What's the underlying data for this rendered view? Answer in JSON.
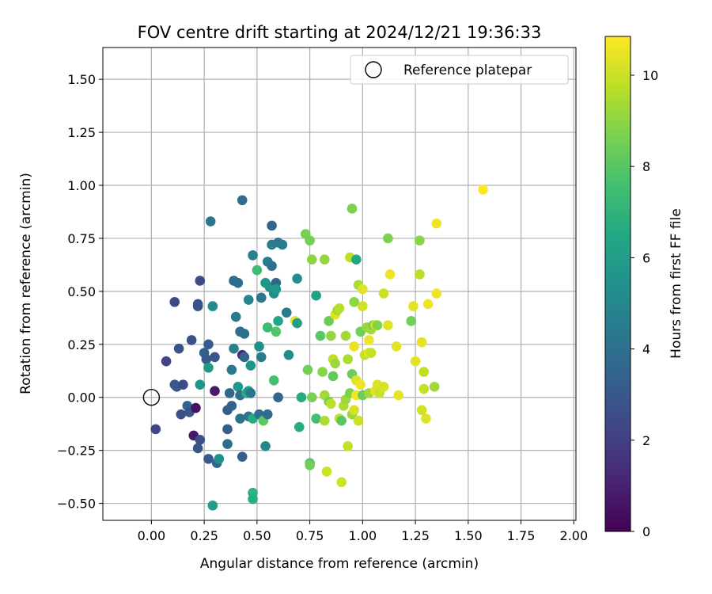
{
  "chart_data": {
    "type": "scatter",
    "title": "FOV centre drift starting at 2024/12/21 19:36:33",
    "xlabel": "Angular distance from reference (arcmin)",
    "ylabel": "Rotation from reference (arcmin)",
    "xlim": [
      -0.23,
      2.01
    ],
    "ylim": [
      -0.58,
      1.65
    ],
    "xticks": [
      "0.00",
      "0.25",
      "0.50",
      "0.75",
      "1.00",
      "1.25",
      "1.50",
      "1.75",
      "2.00"
    ],
    "yticks": [
      "-0.50",
      "-0.25",
      "0.00",
      "0.25",
      "0.50",
      "0.75",
      "1.00",
      "1.25",
      "1.50"
    ],
    "grid": true,
    "legend": {
      "position": "top-right",
      "label": "Reference platepar"
    },
    "reference_point": {
      "x": 0.0,
      "y": 0.0
    },
    "colorbar": {
      "label": "Hours from first FF file",
      "min": 0,
      "max": 10.85,
      "ticks": [
        "0",
        "2",
        "4",
        "6",
        "8",
        "10"
      ],
      "colormap": "viridis"
    },
    "points": [
      {
        "x": 0.02,
        "y": -0.15,
        "h": 2.3
      },
      {
        "x": 0.07,
        "y": 0.17,
        "h": 2.2
      },
      {
        "x": 0.11,
        "y": 0.45,
        "h": 2.4
      },
      {
        "x": 0.11,
        "y": 0.06,
        "h": 2.9
      },
      {
        "x": 0.12,
        "y": 0.05,
        "h": 3.0
      },
      {
        "x": 0.13,
        "y": 0.23,
        "h": 2.8
      },
      {
        "x": 0.14,
        "y": -0.08,
        "h": 2.6
      },
      {
        "x": 0.15,
        "y": 0.06,
        "h": 2.5
      },
      {
        "x": 0.17,
        "y": -0.04,
        "h": 3.4
      },
      {
        "x": 0.18,
        "y": -0.07,
        "h": 2.9
      },
      {
        "x": 0.19,
        "y": 0.27,
        "h": 2.7
      },
      {
        "x": 0.2,
        "y": -0.18,
        "h": 0.7
      },
      {
        "x": 0.21,
        "y": -0.05,
        "h": 0.5
      },
      {
        "x": 0.22,
        "y": 0.44,
        "h": 2.7
      },
      {
        "x": 0.22,
        "y": 0.43,
        "h": 2.8
      },
      {
        "x": 0.22,
        "y": -0.24,
        "h": 2.9
      },
      {
        "x": 0.23,
        "y": 0.55,
        "h": 2.5
      },
      {
        "x": 0.23,
        "y": -0.2,
        "h": 2.6
      },
      {
        "x": 0.23,
        "y": 0.06,
        "h": 5.6
      },
      {
        "x": 0.25,
        "y": 0.21,
        "h": 3.3
      },
      {
        "x": 0.26,
        "y": 0.18,
        "h": 3.0
      },
      {
        "x": 0.27,
        "y": 0.14,
        "h": 5.8
      },
      {
        "x": 0.27,
        "y": 0.25,
        "h": 3.1
      },
      {
        "x": 0.27,
        "y": -0.29,
        "h": 3.0
      },
      {
        "x": 0.28,
        "y": 0.83,
        "h": 4.2
      },
      {
        "x": 0.29,
        "y": 0.43,
        "h": 5.3
      },
      {
        "x": 0.29,
        "y": -0.51,
        "h": 6.0
      },
      {
        "x": 0.3,
        "y": 0.03,
        "h": 0.8
      },
      {
        "x": 0.3,
        "y": 0.19,
        "h": 2.9
      },
      {
        "x": 0.31,
        "y": -0.31,
        "h": 3.6
      },
      {
        "x": 0.32,
        "y": -0.29,
        "h": 5.4
      },
      {
        "x": 0.36,
        "y": -0.06,
        "h": 3.1
      },
      {
        "x": 0.36,
        "y": -0.22,
        "h": 3.8
      },
      {
        "x": 0.36,
        "y": -0.15,
        "h": 3.2
      },
      {
        "x": 0.37,
        "y": 0.02,
        "h": 3.6
      },
      {
        "x": 0.38,
        "y": -0.04,
        "h": 3.4
      },
      {
        "x": 0.38,
        "y": 0.13,
        "h": 4.3
      },
      {
        "x": 0.39,
        "y": 0.55,
        "h": 3.8
      },
      {
        "x": 0.39,
        "y": 0.23,
        "h": 4.8
      },
      {
        "x": 0.4,
        "y": 0.38,
        "h": 4.5
      },
      {
        "x": 0.41,
        "y": 0.54,
        "h": 3.9
      },
      {
        "x": 0.41,
        "y": 0.05,
        "h": 5.7
      },
      {
        "x": 0.42,
        "y": 0.01,
        "h": 3.9
      },
      {
        "x": 0.42,
        "y": -0.1,
        "h": 4.1
      },
      {
        "x": 0.42,
        "y": 0.31,
        "h": 3.9
      },
      {
        "x": 0.43,
        "y": 0.93,
        "h": 3.9
      },
      {
        "x": 0.43,
        "y": -0.28,
        "h": 3.2
      },
      {
        "x": 0.43,
        "y": 0.2,
        "h": 1.3
      },
      {
        "x": 0.44,
        "y": 0.19,
        "h": 3.5
      },
      {
        "x": 0.44,
        "y": 0.3,
        "h": 4.0
      },
      {
        "x": 0.45,
        "y": 0.02,
        "h": 6.7
      },
      {
        "x": 0.46,
        "y": 0.03,
        "h": 5.9
      },
      {
        "x": 0.46,
        "y": 0.46,
        "h": 4.9
      },
      {
        "x": 0.46,
        "y": -0.09,
        "h": 4.2
      },
      {
        "x": 0.47,
        "y": 0.15,
        "h": 5.6
      },
      {
        "x": 0.47,
        "y": 0.02,
        "h": 4.2
      },
      {
        "x": 0.48,
        "y": 0.67,
        "h": 4.7
      },
      {
        "x": 0.48,
        "y": -0.45,
        "h": 7.0
      },
      {
        "x": 0.48,
        "y": -0.1,
        "h": 6.6
      },
      {
        "x": 0.48,
        "y": -0.48,
        "h": 6.8
      },
      {
        "x": 0.5,
        "y": 0.6,
        "h": 7.4
      },
      {
        "x": 0.51,
        "y": 0.24,
        "h": 5.3
      },
      {
        "x": 0.51,
        "y": -0.08,
        "h": 3.9
      },
      {
        "x": 0.52,
        "y": 0.19,
        "h": 4.5
      },
      {
        "x": 0.52,
        "y": 0.47,
        "h": 3.5
      },
      {
        "x": 0.52,
        "y": 0.47,
        "h": 4.2
      },
      {
        "x": 0.53,
        "y": -0.11,
        "h": 8.1
      },
      {
        "x": 0.54,
        "y": 0.54,
        "h": 5.7
      },
      {
        "x": 0.54,
        "y": -0.23,
        "h": 5.0
      },
      {
        "x": 0.55,
        "y": 0.64,
        "h": 4.5
      },
      {
        "x": 0.55,
        "y": -0.08,
        "h": 3.8
      },
      {
        "x": 0.55,
        "y": 0.33,
        "h": 7.3
      },
      {
        "x": 0.56,
        "y": 0.52,
        "h": 5.5
      },
      {
        "x": 0.57,
        "y": 0.81,
        "h": 3.5
      },
      {
        "x": 0.57,
        "y": 0.72,
        "h": 4.5
      },
      {
        "x": 0.57,
        "y": 0.62,
        "h": 4.0
      },
      {
        "x": 0.58,
        "y": 0.49,
        "h": 5.3
      },
      {
        "x": 0.58,
        "y": 0.08,
        "h": 7.6
      },
      {
        "x": 0.59,
        "y": 0.54,
        "h": 3.6
      },
      {
        "x": 0.59,
        "y": 0.51,
        "h": 5.8
      },
      {
        "x": 0.59,
        "y": 0.31,
        "h": 7.9
      },
      {
        "x": 0.6,
        "y": 0.73,
        "h": 4.4
      },
      {
        "x": 0.6,
        "y": -0.0,
        "h": 3.5
      },
      {
        "x": 0.6,
        "y": 0.36,
        "h": 6.3
      },
      {
        "x": 0.62,
        "y": 0.72,
        "h": 4.6
      },
      {
        "x": 0.64,
        "y": 0.4,
        "h": 4.5
      },
      {
        "x": 0.65,
        "y": 0.2,
        "h": 5.2
      },
      {
        "x": 0.68,
        "y": 0.36,
        "h": 10.5
      },
      {
        "x": 0.69,
        "y": 0.56,
        "h": 5.3
      },
      {
        "x": 0.69,
        "y": 0.35,
        "h": 6.0
      },
      {
        "x": 0.7,
        "y": -0.14,
        "h": 6.7
      },
      {
        "x": 0.71,
        "y": -0.0,
        "h": 6.6
      },
      {
        "x": 0.73,
        "y": 0.77,
        "h": 8.6
      },
      {
        "x": 0.74,
        "y": 0.13,
        "h": 8.5
      },
      {
        "x": 0.75,
        "y": 0.74,
        "h": 8.5
      },
      {
        "x": 0.75,
        "y": -0.31,
        "h": 7.9
      },
      {
        "x": 0.75,
        "y": -0.32,
        "h": 8.5
      },
      {
        "x": 0.76,
        "y": 0.0,
        "h": 8.6
      },
      {
        "x": 0.76,
        "y": 0.65,
        "h": 9.0
      },
      {
        "x": 0.78,
        "y": 0.48,
        "h": 6.2
      },
      {
        "x": 0.78,
        "y": -0.1,
        "h": 7.6
      },
      {
        "x": 0.8,
        "y": 0.29,
        "h": 8.0
      },
      {
        "x": 0.81,
        "y": 0.12,
        "h": 8.9
      },
      {
        "x": 0.82,
        "y": 0.65,
        "h": 9.1
      },
      {
        "x": 0.82,
        "y": -0.11,
        "h": 9.5
      },
      {
        "x": 0.82,
        "y": 0.01,
        "h": 9.3
      },
      {
        "x": 0.83,
        "y": -0.35,
        "h": 10.0
      },
      {
        "x": 0.84,
        "y": 0.36,
        "h": 8.4
      },
      {
        "x": 0.84,
        "y": -0.02,
        "h": 8.6
      },
      {
        "x": 0.85,
        "y": 0.29,
        "h": 9.1
      },
      {
        "x": 0.85,
        "y": -0.03,
        "h": 9.8
      },
      {
        "x": 0.86,
        "y": 0.1,
        "h": 8.2
      },
      {
        "x": 0.86,
        "y": 0.18,
        "h": 9.8
      },
      {
        "x": 0.87,
        "y": 0.16,
        "h": 9.2
      },
      {
        "x": 0.87,
        "y": 0.39,
        "h": 10.3
      },
      {
        "x": 0.88,
        "y": 0.41,
        "h": 9.4
      },
      {
        "x": 0.89,
        "y": -0.1,
        "h": 9.9
      },
      {
        "x": 0.89,
        "y": 0.42,
        "h": 9.7
      },
      {
        "x": 0.9,
        "y": -0.11,
        "h": 8.0
      },
      {
        "x": 0.9,
        "y": -0.4,
        "h": 10.1
      },
      {
        "x": 0.91,
        "y": -0.04,
        "h": 9.5
      },
      {
        "x": 0.92,
        "y": 0.29,
        "h": 9.3
      },
      {
        "x": 0.92,
        "y": -0.01,
        "h": 9.2
      },
      {
        "x": 0.93,
        "y": -0.23,
        "h": 9.9
      },
      {
        "x": 0.93,
        "y": 0.18,
        "h": 9.5
      },
      {
        "x": 0.94,
        "y": 0.66,
        "h": 9.8
      },
      {
        "x": 0.94,
        "y": 0.02,
        "h": 8.7
      },
      {
        "x": 0.95,
        "y": -0.08,
        "h": 9.2
      },
      {
        "x": 0.95,
        "y": 0.11,
        "h": 8.4
      },
      {
        "x": 0.95,
        "y": 0.89,
        "h": 8.7
      },
      {
        "x": 0.96,
        "y": 0.45,
        "h": 9.0
      },
      {
        "x": 0.96,
        "y": 0.24,
        "h": 10.5
      },
      {
        "x": 0.96,
        "y": -0.06,
        "h": 10.2
      },
      {
        "x": 0.97,
        "y": 0.65,
        "h": 6.5
      },
      {
        "x": 0.97,
        "y": 0.01,
        "h": 10.7
      },
      {
        "x": 0.97,
        "y": 0.08,
        "h": 10.3
      },
      {
        "x": 0.98,
        "y": -0.11,
        "h": 10.0
      },
      {
        "x": 0.98,
        "y": 0.53,
        "h": 9.5
      },
      {
        "x": 0.99,
        "y": 0.31,
        "h": 8.5
      },
      {
        "x": 0.99,
        "y": 0.06,
        "h": 10.6
      },
      {
        "x": 1.0,
        "y": 0.43,
        "h": 10.1
      },
      {
        "x": 1.0,
        "y": 0.51,
        "h": 10.3
      },
      {
        "x": 1.0,
        "y": 0.01,
        "h": 8.4
      },
      {
        "x": 1.01,
        "y": 0.2,
        "h": 9.9
      },
      {
        "x": 1.02,
        "y": 0.33,
        "h": 9.1
      },
      {
        "x": 1.03,
        "y": 0.21,
        "h": 10.5
      },
      {
        "x": 1.03,
        "y": 0.27,
        "h": 10.6
      },
      {
        "x": 1.03,
        "y": 0.02,
        "h": 9.3
      },
      {
        "x": 1.04,
        "y": 0.32,
        "h": 9.4
      },
      {
        "x": 1.04,
        "y": 0.21,
        "h": 9.9
      },
      {
        "x": 1.05,
        "y": 0.34,
        "h": 8.5
      },
      {
        "x": 1.06,
        "y": 0.03,
        "h": 10.4
      },
      {
        "x": 1.06,
        "y": 0.34,
        "h": 10.1
      },
      {
        "x": 1.07,
        "y": 0.06,
        "h": 10.3
      },
      {
        "x": 1.07,
        "y": 0.34,
        "h": 8.8
      },
      {
        "x": 1.08,
        "y": 0.02,
        "h": 10.0
      },
      {
        "x": 1.1,
        "y": 0.49,
        "h": 10.0
      },
      {
        "x": 1.1,
        "y": 0.05,
        "h": 10.2
      },
      {
        "x": 1.12,
        "y": 0.34,
        "h": 10.3
      },
      {
        "x": 1.12,
        "y": 0.75,
        "h": 8.7
      },
      {
        "x": 1.13,
        "y": 0.58,
        "h": 10.6
      },
      {
        "x": 1.16,
        "y": 0.24,
        "h": 10.4
      },
      {
        "x": 1.17,
        "y": 0.01,
        "h": 10.4
      },
      {
        "x": 1.23,
        "y": 0.36,
        "h": 8.5
      },
      {
        "x": 1.24,
        "y": 0.43,
        "h": 10.4
      },
      {
        "x": 1.25,
        "y": 0.17,
        "h": 10.4
      },
      {
        "x": 1.27,
        "y": 0.74,
        "h": 8.9
      },
      {
        "x": 1.27,
        "y": 0.58,
        "h": 9.7
      },
      {
        "x": 1.28,
        "y": -0.06,
        "h": 10.1
      },
      {
        "x": 1.28,
        "y": 0.26,
        "h": 10.4
      },
      {
        "x": 1.29,
        "y": 0.12,
        "h": 9.8
      },
      {
        "x": 1.29,
        "y": 0.04,
        "h": 9.9
      },
      {
        "x": 1.3,
        "y": -0.1,
        "h": 10.3
      },
      {
        "x": 1.31,
        "y": 0.44,
        "h": 10.6
      },
      {
        "x": 1.34,
        "y": 0.05,
        "h": 9.3
      },
      {
        "x": 1.35,
        "y": 0.49,
        "h": 10.6
      },
      {
        "x": 1.35,
        "y": 0.82,
        "h": 10.6
      },
      {
        "x": 1.57,
        "y": 0.98,
        "h": 10.8
      }
    ]
  }
}
